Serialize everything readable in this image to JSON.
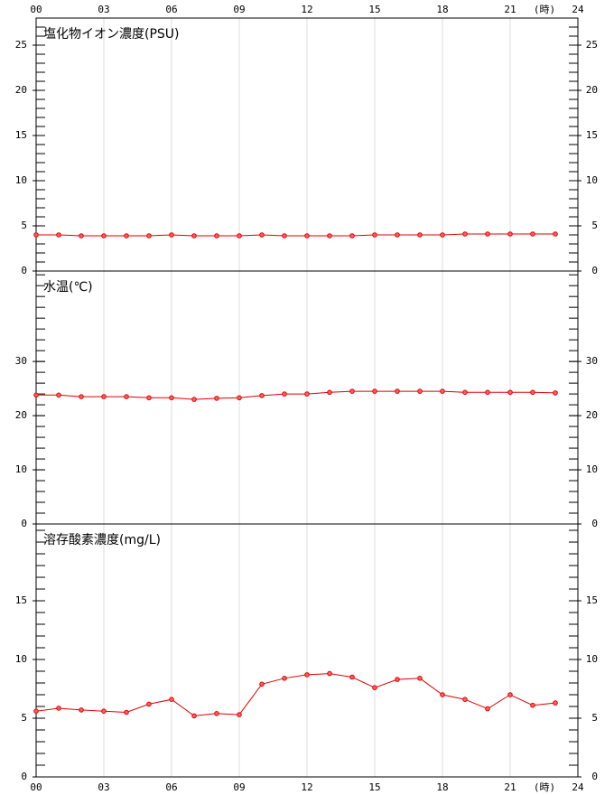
{
  "x_axis": {
    "xlim": [
      0,
      24
    ],
    "xticks": [
      {
        "value": 0,
        "label": "00"
      },
      {
        "value": 3,
        "label": "03"
      },
      {
        "value": 6,
        "label": "06"
      },
      {
        "value": 9,
        "label": "09"
      },
      12,
      15,
      18,
      21,
      24
    ],
    "unit": "(時)"
  },
  "chart_data": [
    {
      "type": "line",
      "title": "塩化物イオン濃度(PSU)",
      "color": "#e00000",
      "x": [
        0,
        1,
        2,
        3,
        4,
        5,
        6,
        7,
        8,
        9,
        10,
        11,
        12,
        13,
        14,
        15,
        16,
        17,
        18,
        19,
        20,
        21,
        22,
        23
      ],
      "values": [
        4.0,
        4.0,
        3.9,
        3.9,
        3.9,
        3.9,
        4.0,
        3.9,
        3.9,
        3.9,
        4.0,
        3.9,
        3.9,
        3.9,
        3.9,
        4.0,
        4.0,
        4.0,
        4.0,
        4.1,
        4.1,
        4.1,
        4.1,
        4.1
      ],
      "ylim": [
        0,
        28
      ],
      "yticks": [
        0,
        5,
        10,
        15,
        20,
        25
      ],
      "minor_tick_step": 1
    },
    {
      "type": "line",
      "title": "水温(℃)",
      "color": "#e00000",
      "x": [
        0,
        1,
        2,
        3,
        4,
        5,
        6,
        7,
        8,
        9,
        10,
        11,
        12,
        13,
        14,
        15,
        16,
        17,
        18,
        19,
        20,
        21,
        22,
        23
      ],
      "values": [
        23.8,
        23.8,
        23.5,
        23.5,
        23.5,
        23.3,
        23.3,
        23.0,
        23.2,
        23.3,
        23.7,
        24.0,
        24.0,
        24.3,
        24.5,
        24.5,
        24.5,
        24.5,
        24.5,
        24.3,
        24.3,
        24.3,
        24.3,
        24.2
      ],
      "ylim": [
        0,
        46.7
      ],
      "yticks": [
        0,
        10,
        20,
        30
      ],
      "minor_tick_step": 2
    },
    {
      "type": "line",
      "title": "溶存酸素濃度(mg/L)",
      "color": "#e00000",
      "x": [
        0,
        1,
        2,
        3,
        4,
        5,
        6,
        7,
        8,
        9,
        10,
        11,
        12,
        13,
        14,
        15,
        16,
        17,
        18,
        19,
        20,
        21,
        22,
        23
      ],
      "values": [
        5.6,
        5.85,
        5.7,
        5.6,
        5.5,
        6.2,
        6.6,
        5.2,
        5.4,
        5.3,
        7.9,
        8.4,
        8.7,
        8.8,
        8.5,
        7.6,
        8.3,
        8.4,
        7.0,
        6.6,
        5.8,
        7.0,
        6.1,
        6.3
      ],
      "ylim": [
        0,
        21.54
      ],
      "yticks": [
        0,
        5,
        10,
        15
      ],
      "minor_tick_step": 1
    }
  ]
}
